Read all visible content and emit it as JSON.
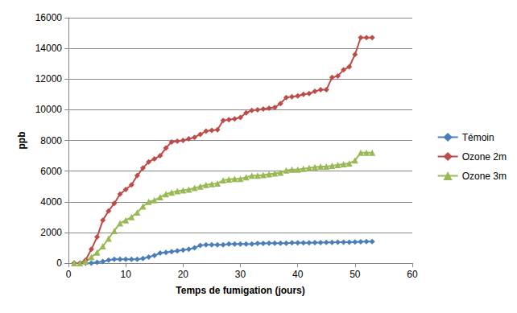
{
  "chart_data": {
    "type": "line",
    "x_label": "Temps de fumigation (jours)",
    "y_label": "ppb",
    "x": [
      1,
      2,
      3,
      4,
      5,
      6,
      7,
      8,
      9,
      10,
      11,
      12,
      13,
      14,
      15,
      16,
      17,
      18,
      19,
      20,
      21,
      22,
      23,
      24,
      25,
      26,
      27,
      28,
      29,
      30,
      31,
      32,
      33,
      34,
      35,
      36,
      37,
      38,
      39,
      40,
      41,
      42,
      43,
      44,
      45,
      46,
      47,
      48,
      49,
      50,
      51,
      52,
      53
    ],
    "series": [
      {
        "name": "Témoin",
        "color": "#4a7ebb",
        "marker": "diamond",
        "line_style": "solid",
        "values": [
          0,
          0,
          0,
          0,
          50,
          100,
          200,
          250,
          250,
          250,
          250,
          250,
          300,
          400,
          500,
          650,
          700,
          750,
          800,
          850,
          900,
          1000,
          1150,
          1200,
          1200,
          1200,
          1200,
          1250,
          1250,
          1250,
          1250,
          1250,
          1280,
          1280,
          1300,
          1300,
          1300,
          1300,
          1320,
          1320,
          1330,
          1330,
          1340,
          1340,
          1350,
          1350,
          1360,
          1360,
          1370,
          1380,
          1390,
          1400,
          1400
        ]
      },
      {
        "name": "Ozone 2m",
        "color": "#be4b48",
        "marker": "diamond",
        "line_style": "solid",
        "values": [
          0,
          0,
          200,
          900,
          1700,
          2800,
          3400,
          3900,
          4500,
          4800,
          5100,
          5700,
          6200,
          6600,
          6800,
          7000,
          7500,
          7900,
          7950,
          8000,
          8100,
          8200,
          8400,
          8600,
          8650,
          8700,
          9300,
          9350,
          9400,
          9500,
          9800,
          9950,
          10000,
          10050,
          10100,
          10150,
          10400,
          10800,
          10850,
          10900,
          11000,
          11050,
          11200,
          11300,
          11300,
          12100,
          12200,
          12600,
          12800,
          13600,
          14700,
          14700,
          14700
        ]
      },
      {
        "name": "Ozone 3m",
        "color": "#98b954",
        "marker": "triangle",
        "line_style": "solid",
        "values": [
          0,
          0,
          100,
          400,
          700,
          1100,
          1600,
          2100,
          2600,
          2800,
          3000,
          3300,
          3700,
          4000,
          4100,
          4300,
          4500,
          4600,
          4700,
          4750,
          4800,
          4900,
          5000,
          5100,
          5150,
          5200,
          5400,
          5450,
          5500,
          5500,
          5600,
          5700,
          5700,
          5750,
          5800,
          5850,
          5900,
          6050,
          6100,
          6100,
          6150,
          6200,
          6250,
          6300,
          6300,
          6350,
          6400,
          6450,
          6500,
          6700,
          7200,
          7200,
          7200
        ]
      }
    ],
    "xlim": [
      0,
      60
    ],
    "xticks": [
      0,
      10,
      20,
      30,
      40,
      50,
      60
    ],
    "ylim": [
      0,
      16000
    ],
    "yticks": [
      0,
      2000,
      4000,
      6000,
      8000,
      10000,
      12000,
      14000,
      16000
    ],
    "grid": true,
    "legend": "right"
  }
}
